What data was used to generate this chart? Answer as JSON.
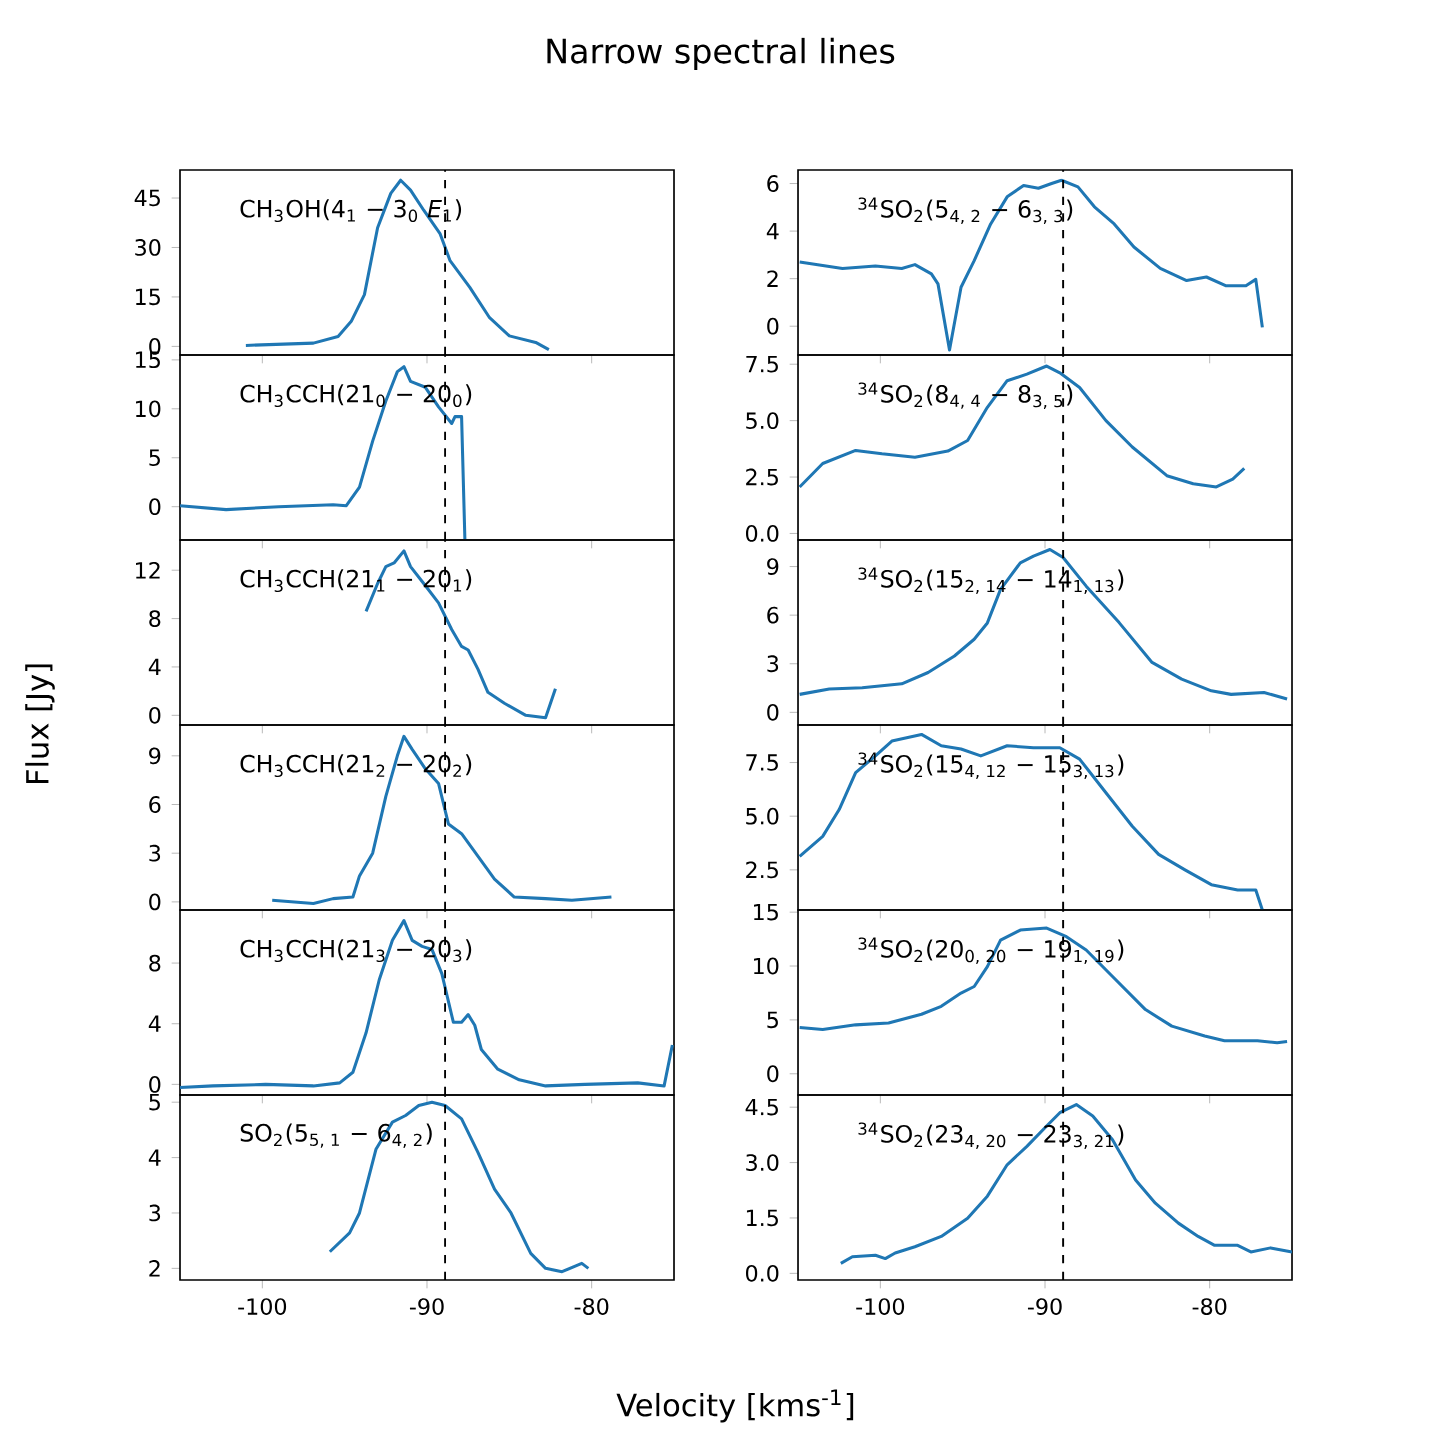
{
  "chart_data": [
    {
      "type": "line",
      "title": "Narrow spectral lines",
      "annotations": [
        "CH$_{3}$OH(4$_{1}$ − 3$_{0}$ *E*$_{1}$)"
      ],
      "color": "#1f77b4",
      "xlim": [
        -105,
        -75
      ],
      "xticks": [
        -100,
        -90,
        -80
      ],
      "ylim": [
        -2.6,
        53.5
      ],
      "yticks": [
        0,
        15,
        30,
        45
      ],
      "tick_labels": "y",
      "ref_lines": [
        {
          "axis": "x",
          "value": -88.9,
          "line_style": "dashed"
        }
      ],
      "x": [
        -101.0,
        -96.9,
        -95.4,
        -94.6,
        -93.8,
        -93.0,
        -92.2,
        -91.6,
        -91.0,
        -90.2,
        -89.2,
        -88.6,
        -87.4,
        -86.2,
        -85.0,
        -83.4,
        -82.6
      ],
      "values": [
        0.3,
        1,
        3,
        7.6,
        15.7,
        36,
        46.4,
        50.4,
        47.4,
        41.3,
        34.1,
        26,
        17.9,
        8.7,
        3.2,
        1.2,
        -1
      ]
    },
    {
      "type": "line",
      "annotations": [
        "$^{34}$SO$_{2}$(5$_{4, 2}$ − 6$_{3, 3}$)"
      ],
      "color": "#1f77b4",
      "xlim": [
        -105,
        -75
      ],
      "xticks": [
        -100,
        -90,
        -80
      ],
      "ylim": [
        -1.21,
        6.57
      ],
      "yticks": [
        0,
        2,
        4,
        6
      ],
      "tick_labels": "y",
      "ref_lines": [
        {
          "axis": "x",
          "value": -88.9,
          "line_style": "dashed"
        }
      ],
      "x": [
        -104.9,
        -102.3,
        -100.3,
        -98.7,
        -97.9,
        -96.9,
        -96.5,
        -95.8,
        -95.1,
        -94.3,
        -93.3,
        -92.3,
        -91.3,
        -90.4,
        -89.6,
        -89.0,
        -88.0,
        -87.0,
        -85.8,
        -84.6,
        -83.0,
        -81.4,
        -80.2,
        -79.0,
        -77.8,
        -77.2,
        -76.8
      ],
      "values": [
        2.7,
        2.43,
        2.53,
        2.43,
        2.59,
        2.2,
        1.78,
        -1.0,
        1.64,
        2.76,
        4.3,
        5.44,
        5.92,
        5.8,
        6.0,
        6.14,
        5.86,
        5.02,
        4.3,
        3.33,
        2.43,
        1.92,
        2.07,
        1.7,
        1.7,
        1.97,
        -0.05
      ]
    },
    {
      "type": "line",
      "annotations": [
        "CH$_{3}$CCH(21$_{0}$ − 20$_{0}$)"
      ],
      "color": "#1f77b4",
      "xlim": [
        -105,
        -75
      ],
      "xticks": [
        -100,
        -90,
        -80
      ],
      "ylim": [
        -3.4,
        15.5
      ],
      "yticks": [
        0,
        5,
        10,
        15
      ],
      "tick_labels": "y",
      "ref_lines": [
        {
          "axis": "x",
          "value": -88.9,
          "line_style": "dashed"
        }
      ],
      "x": [
        -105.0,
        -102.2,
        -99.0,
        -95.7,
        -94.9,
        -94.1,
        -93.3,
        -92.5,
        -91.8,
        -91.4,
        -91.0,
        -90.1,
        -89.3,
        -88.5,
        -88.3,
        -87.9,
        -87.7
      ],
      "values": [
        0.1,
        -0.3,
        0,
        0.2,
        0.1,
        2,
        6.7,
        10.8,
        13.8,
        14.3,
        12.8,
        12.2,
        10.2,
        8.5,
        9.2,
        9.2,
        -3.3
      ]
    },
    {
      "type": "line",
      "annotations": [
        "$^{34}$SO$_{2}$(8$_{4, 4}$ − 8$_{3, 5}$)"
      ],
      "color": "#1f77b4",
      "xlim": [
        -105,
        -75
      ],
      "xticks": [
        -100,
        -90,
        -80
      ],
      "ylim": [
        -0.29,
        7.91
      ],
      "yticks": [
        {
          "value": 0,
          "label": "0.0"
        },
        {
          "value": 2.5,
          "label": "2.5"
        },
        {
          "value": 5,
          "label": "5.0"
        },
        {
          "value": 7.5,
          "label": "7.5"
        }
      ],
      "tick_labels": "y",
      "ref_lines": [
        {
          "axis": "x",
          "value": -88.9,
          "line_style": "dashed"
        }
      ],
      "x": [
        -104.9,
        -103.5,
        -101.5,
        -99.9,
        -97.9,
        -95.9,
        -94.7,
        -93.5,
        -92.3,
        -91.1,
        -89.9,
        -89.1,
        -87.9,
        -86.3,
        -84.7,
        -82.6,
        -81.0,
        -79.6,
        -78.6,
        -77.9
      ],
      "values": [
        2.06,
        3.1,
        3.68,
        3.53,
        3.38,
        3.65,
        4.12,
        5.59,
        6.77,
        7.06,
        7.42,
        7.12,
        6.47,
        5.0,
        3.83,
        2.56,
        2.2,
        2.06,
        2.41,
        2.88
      ]
    },
    {
      "type": "line",
      "annotations": [
        "CH$_{3}$CCH(21$_{1}$ − 20$_{1}$)"
      ],
      "color": "#1f77b4",
      "xlim": [
        -105,
        -75
      ],
      "xticks": [
        -100,
        -90,
        -80
      ],
      "ylim": [
        -0.8,
        14.5
      ],
      "yticks": [
        0,
        4,
        8,
        12
      ],
      "tick_labels": "y",
      "ref_lines": [
        {
          "axis": "x",
          "value": -88.9,
          "line_style": "dashed"
        }
      ],
      "x": [
        -93.7,
        -93.0,
        -92.5,
        -92.0,
        -91.4,
        -91.0,
        -90.2,
        -89.3,
        -88.5,
        -87.9,
        -87.5,
        -86.9,
        -86.3,
        -85.3,
        -84.0,
        -82.8,
        -82.2
      ],
      "values": [
        8.6,
        10.9,
        12.3,
        12.6,
        13.6,
        12.3,
        10.9,
        9.3,
        7.1,
        5.7,
        5.4,
        3.8,
        1.9,
        1.0,
        0,
        -0.2,
        2.2
      ]
    },
    {
      "type": "line",
      "annotations": [
        "$^{34}$SO$_{2}$(15$_{2, 14}$ − 14$_{1, 13}$)"
      ],
      "color": "#1f77b4",
      "xlim": [
        -105,
        -75
      ],
      "xticks": [
        -100,
        -90,
        -80
      ],
      "ylim": [
        -0.78,
        10.64
      ],
      "yticks": [
        0,
        3,
        6,
        9
      ],
      "tick_labels": "y",
      "ref_lines": [
        {
          "axis": "x",
          "value": -88.9,
          "line_style": "dashed"
        }
      ],
      "x": [
        -104.9,
        -103.1,
        -101.1,
        -98.7,
        -97.1,
        -95.5,
        -94.3,
        -93.5,
        -92.7,
        -91.5,
        -90.7,
        -89.7,
        -88.9,
        -87.5,
        -85.5,
        -83.5,
        -81.7,
        -79.9,
        -78.7,
        -76.7,
        -75.3
      ],
      "values": [
        1.11,
        1.44,
        1.52,
        1.76,
        2.46,
        3.48,
        4.51,
        5.52,
        7.59,
        9.23,
        9.64,
        10.05,
        9.56,
        7.79,
        5.54,
        3.08,
        2.05,
        1.33,
        1.11,
        1.23,
        0.82
      ]
    },
    {
      "type": "line",
      "ylabel": "Flux [Jy]",
      "annotations": [
        "CH$_{3}$CCH(21$_{2}$ − 20$_{2}$)"
      ],
      "color": "#1f77b4",
      "xlim": [
        -105,
        -75
      ],
      "xticks": [
        -100,
        -90,
        -80
      ],
      "ylim": [
        -0.5,
        10.9
      ],
      "yticks": [
        0,
        3,
        6,
        9
      ],
      "tick_labels": "y",
      "ref_lines": [
        {
          "axis": "x",
          "value": -88.9,
          "line_style": "dashed"
        }
      ],
      "x": [
        -99.4,
        -96.9,
        -95.7,
        -94.5,
        -94.1,
        -93.3,
        -92.5,
        -91.8,
        -91.4,
        -90.9,
        -90.1,
        -89.3,
        -88.7,
        -87.9,
        -86.9,
        -85.9,
        -84.7,
        -82.8,
        -81.2,
        -78.8
      ],
      "values": [
        0.1,
        -0.1,
        0.2,
        0.3,
        1.6,
        3.0,
        6.5,
        9.0,
        10.2,
        9.4,
        8.2,
        7.3,
        4.8,
        4.2,
        2.8,
        1.4,
        0.3,
        0.2,
        0.1,
        0.3
      ]
    },
    {
      "type": "line",
      "annotations": [
        "$^{34}$SO$_{2}$(15$_{4, 12}$ − 15$_{3, 13}$)"
      ],
      "color": "#1f77b4",
      "xlim": [
        -105,
        -75
      ],
      "xticks": [
        -100,
        -90,
        -80
      ],
      "ylim": [
        0.63,
        9.25
      ],
      "yticks": [
        {
          "value": 2.5,
          "label": "2.5"
        },
        {
          "value": 5,
          "label": "5.0"
        },
        {
          "value": 7.5,
          "label": "7.5"
        }
      ],
      "tick_labels": "y",
      "ref_lines": [
        {
          "axis": "x",
          "value": -88.9,
          "line_style": "dashed"
        }
      ],
      "x": [
        -104.9,
        -103.5,
        -102.5,
        -101.5,
        -100.3,
        -99.3,
        -97.5,
        -96.3,
        -95.1,
        -93.9,
        -92.3,
        -90.7,
        -89.1,
        -87.9,
        -86.3,
        -84.7,
        -83.1,
        -81.5,
        -79.9,
        -78.3,
        -77.2,
        -76.8
      ],
      "values": [
        3.13,
        4.06,
        5.31,
        7.03,
        7.81,
        8.5,
        8.81,
        8.28,
        8.13,
        7.81,
        8.28,
        8.19,
        8.19,
        7.66,
        6.09,
        4.53,
        3.22,
        2.5,
        1.81,
        1.56,
        1.56,
        0.63
      ]
    },
    {
      "type": "line",
      "annotations": [
        "CH$_{3}$CCH(21$_{3}$ − 20$_{3}$)"
      ],
      "color": "#1f77b4",
      "xlim": [
        -105,
        -75
      ],
      "xticks": [
        -100,
        -90,
        -80
      ],
      "ylim": [
        -0.7,
        11.5
      ],
      "yticks": [
        0,
        4,
        8
      ],
      "tick_labels": "y",
      "ref_lines": [
        {
          "axis": "x",
          "value": -88.9,
          "line_style": "dashed"
        }
      ],
      "x": [
        -105.0,
        -103.0,
        -99.8,
        -96.9,
        -95.3,
        -94.5,
        -93.7,
        -92.9,
        -92.1,
        -91.4,
        -90.9,
        -90.3,
        -89.7,
        -89.1,
        -88.4,
        -87.9,
        -87.5,
        -87.1,
        -86.7,
        -85.7,
        -84.4,
        -82.8,
        -80.4,
        -77.2,
        -75.6,
        -75.1
      ],
      "values": [
        -0.2,
        -0.1,
        0,
        -0.1,
        0.1,
        0.8,
        3.4,
        6.9,
        9.5,
        10.8,
        9.5,
        9.1,
        8.9,
        7.3,
        4.1,
        4.1,
        4.6,
        3.9,
        2.3,
        1.0,
        0.3,
        -0.1,
        0,
        0.1,
        -0.1,
        2.6
      ]
    },
    {
      "type": "line",
      "annotations": [
        "$^{34}$SO$_{2}$(20$_{0, 20}$ − 19$_{1, 19}$)"
      ],
      "color": "#1f77b4",
      "xlim": [
        -105,
        -75
      ],
      "xticks": [
        -100,
        -90,
        -80
      ],
      "ylim": [
        -1.97,
        15.2
      ],
      "yticks": [
        0,
        5,
        10,
        15
      ],
      "tick_labels": "y",
      "ref_lines": [
        {
          "axis": "x",
          "value": -88.9,
          "line_style": "dashed"
        }
      ],
      "x": [
        -104.9,
        -103.5,
        -101.5,
        -99.5,
        -97.5,
        -96.3,
        -95.1,
        -94.3,
        -93.5,
        -92.7,
        -91.5,
        -89.9,
        -88.7,
        -87.5,
        -85.9,
        -83.9,
        -82.3,
        -80.3,
        -79.1,
        -77.1,
        -75.9,
        -75.3
      ],
      "values": [
        4.3,
        4.11,
        4.54,
        4.72,
        5.52,
        6.26,
        7.49,
        8.1,
        9.95,
        12.4,
        13.34,
        13.52,
        12.72,
        11.49,
        9.03,
        5.96,
        4.42,
        3.5,
        3.07,
        3.07,
        2.88,
        3.0
      ]
    },
    {
      "type": "line",
      "xlabel": "Velocity [kms$^{-1}$]",
      "annotations": [
        "SO$_{2}$(5$_{5, 1}$ − 6$_{4, 2}$)"
      ],
      "color": "#1f77b4",
      "xlim": [
        -105,
        -75
      ],
      "xticks": [
        -100,
        -90,
        -80
      ],
      "ylim": [
        1.79,
        5.13
      ],
      "yticks": [
        2,
        3,
        4,
        5
      ],
      "ref_lines": [
        {
          "axis": "x",
          "value": -88.9,
          "line_style": "dashed"
        }
      ],
      "x": [
        -95.9,
        -94.7,
        -94.1,
        -93.1,
        -92.1,
        -91.3,
        -90.5,
        -89.7,
        -88.9,
        -87.9,
        -86.9,
        -85.9,
        -84.9,
        -83.7,
        -82.8,
        -81.8,
        -80.6,
        -80.2
      ],
      "values": [
        2.3,
        2.64,
        3.0,
        4.15,
        4.64,
        4.76,
        4.94,
        5.0,
        4.94,
        4.7,
        4.09,
        3.43,
        3.0,
        2.27,
        2.0,
        1.94,
        2.09,
        2.0
      ]
    },
    {
      "type": "line",
      "annotations": [
        "$^{34}$SO$_{2}$(23$_{4, 20}$ − 23$_{3, 21}$)"
      ],
      "color": "#1f77b4",
      "xlim": [
        -105,
        -75
      ],
      "xticks": [
        -100,
        -90,
        -80
      ],
      "ylim": [
        -0.18,
        4.83
      ],
      "yticks": [
        {
          "value": 0,
          "label": "0.0"
        },
        {
          "value": 1.5,
          "label": "1.5"
        },
        {
          "value": 3,
          "label": "3.0"
        },
        {
          "value": 4.5,
          "label": "4.5"
        }
      ],
      "ref_lines": [
        {
          "axis": "x",
          "value": -88.9,
          "line_style": "dashed"
        }
      ],
      "x": [
        -102.4,
        -101.7,
        -100.3,
        -99.7,
        -99.1,
        -97.9,
        -96.3,
        -94.7,
        -93.5,
        -92.3,
        -91.1,
        -89.9,
        -89.1,
        -88.1,
        -87.1,
        -85.9,
        -84.5,
        -83.3,
        -81.9,
        -80.7,
        -79.7,
        -78.3,
        -77.5,
        -76.3,
        -75.0
      ],
      "values": [
        0.27,
        0.45,
        0.49,
        0.4,
        0.55,
        0.72,
        1.0,
        1.49,
        2.09,
        2.94,
        3.44,
        3.99,
        4.35,
        4.57,
        4.26,
        3.62,
        2.53,
        1.9,
        1.36,
        1.0,
        0.76,
        0.76,
        0.58,
        0.69,
        0.58
      ]
    }
  ]
}
